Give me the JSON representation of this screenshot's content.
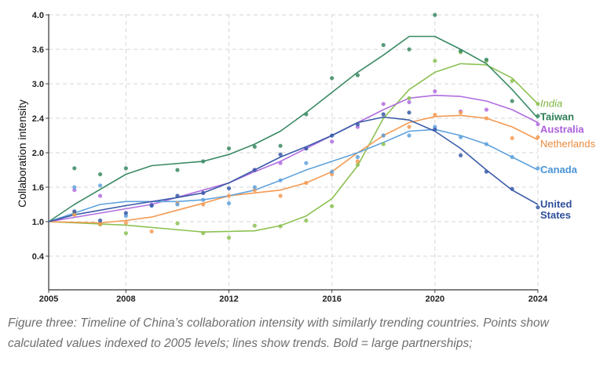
{
  "chart_data": {
    "type": "line",
    "title": "",
    "xlabel": "",
    "ylabel": "Collaboration intensity",
    "xlim": [
      2005,
      2024
    ],
    "ylim": [
      0.15,
      4.0
    ],
    "x_ticks": [
      "2005",
      "2008",
      "2012",
      "2016",
      "2020",
      "2024"
    ],
    "y_ticks": [
      "0.4",
      "1.0",
      "1.6",
      "2.0",
      "2.4",
      "3.0",
      "3.6",
      "4.0"
    ],
    "grid": true,
    "series": [
      {
        "name": "India",
        "bold": false,
        "italic": true,
        "color": "#8cc152",
        "label_color": "#7db33f",
        "trend_x": [
          2005,
          2008,
          2011,
          2013,
          2014,
          2015,
          2016,
          2017,
          2018,
          2019,
          2020,
          2021,
          2022,
          2023,
          2024
        ],
        "trend_y": [
          1.0,
          0.94,
          0.82,
          0.84,
          0.93,
          1.1,
          1.4,
          1.85,
          2.4,
          2.9,
          3.2,
          3.35,
          3.33,
          3.1,
          2.65
        ],
        "points_x": [
          2006,
          2007,
          2008,
          2010,
          2011,
          2012,
          2013,
          2014,
          2015,
          2016,
          2017,
          2018,
          2019,
          2020,
          2021,
          2022,
          2023,
          2024
        ],
        "points_y": [
          1.15,
          0.95,
          0.8,
          0.97,
          0.8,
          0.72,
          0.93,
          0.92,
          1.02,
          1.27,
          1.86,
          2.1,
          2.75,
          3.4,
          3.55,
          3.4,
          3.05,
          2.65
        ]
      },
      {
        "name": "Taiwan",
        "bold": true,
        "italic": false,
        "color": "#3b8a64",
        "label_color": "#2e7d56",
        "trend_x": [
          2005,
          2006,
          2008,
          2009,
          2011,
          2012,
          2013,
          2014,
          2015,
          2016,
          2017,
          2018,
          2019,
          2020,
          2021,
          2022,
          2023,
          2024
        ],
        "trend_y": [
          1.0,
          1.3,
          1.75,
          1.85,
          1.9,
          1.98,
          2.1,
          2.25,
          2.5,
          2.85,
          3.2,
          3.5,
          3.75,
          3.75,
          3.6,
          3.35,
          2.9,
          2.4
        ],
        "points_x": [
          2006,
          2007,
          2008,
          2010,
          2011,
          2012,
          2013,
          2014,
          2015,
          2016,
          2017,
          2018,
          2019,
          2020,
          2021,
          2022,
          2023,
          2024
        ],
        "points_y": [
          1.82,
          1.75,
          1.82,
          1.8,
          1.9,
          2.05,
          2.07,
          2.08,
          2.47,
          3.1,
          3.15,
          3.65,
          3.6,
          4.0,
          3.57,
          3.42,
          2.7,
          2.44
        ]
      },
      {
        "name": "Australia",
        "bold": true,
        "italic": false,
        "color": "#b06ee0",
        "label_color": "#a95fdb",
        "trend_x": [
          2005,
          2007,
          2009,
          2011,
          2012,
          2013,
          2014,
          2015,
          2016,
          2017,
          2018,
          2019,
          2020,
          2021,
          2022,
          2023,
          2024
        ],
        "trend_y": [
          1.0,
          1.15,
          1.3,
          1.55,
          1.65,
          1.78,
          1.9,
          2.05,
          2.2,
          2.35,
          2.55,
          2.75,
          2.8,
          2.78,
          2.7,
          2.55,
          2.35
        ],
        "points_x": [
          2006,
          2007,
          2009,
          2011,
          2013,
          2014,
          2015,
          2016,
          2017,
          2018,
          2019,
          2020,
          2021,
          2022,
          2024
        ],
        "points_y": [
          1.55,
          1.45,
          1.3,
          1.5,
          1.8,
          1.88,
          2.05,
          2.13,
          2.3,
          2.65,
          2.68,
          2.87,
          2.52,
          2.55,
          2.33
        ]
      },
      {
        "name": "Netherlands",
        "bold": false,
        "italic": false,
        "color": "#f39a53",
        "label_color": "#ec8a3c",
        "trend_x": [
          2005,
          2007,
          2008,
          2009,
          2010,
          2011,
          2012,
          2013,
          2014,
          2015,
          2016,
          2017,
          2018,
          2019,
          2020,
          2021,
          2022,
          2023,
          2024
        ],
        "trend_y": [
          1.0,
          0.98,
          1.02,
          1.08,
          1.2,
          1.32,
          1.45,
          1.5,
          1.55,
          1.65,
          1.78,
          2.0,
          2.2,
          2.35,
          2.43,
          2.45,
          2.4,
          2.3,
          2.15
        ],
        "points_x": [
          2006,
          2007,
          2008,
          2009,
          2010,
          2011,
          2012,
          2013,
          2014,
          2015,
          2016,
          2017,
          2018,
          2019,
          2020,
          2021,
          2022,
          2023,
          2024
        ],
        "points_y": [
          1.12,
          0.96,
          0.98,
          0.83,
          1.32,
          1.3,
          1.45,
          1.55,
          1.45,
          1.65,
          1.75,
          1.9,
          2.2,
          2.3,
          2.46,
          2.5,
          2.4,
          2.17,
          2.18
        ]
      },
      {
        "name": "Canada",
        "bold": true,
        "italic": false,
        "color": "#5fa2dd",
        "label_color": "#4a93d6",
        "trend_x": [
          2005,
          2007,
          2008,
          2010,
          2011,
          2012,
          2013,
          2014,
          2015,
          2016,
          2017,
          2018,
          2019,
          2020,
          2021,
          2022,
          2023,
          2024
        ],
        "trend_y": [
          1.0,
          1.3,
          1.35,
          1.35,
          1.38,
          1.45,
          1.55,
          1.68,
          1.8,
          1.9,
          2.0,
          2.12,
          2.25,
          2.27,
          2.2,
          2.1,
          1.95,
          1.8
        ],
        "points_x": [
          2006,
          2007,
          2008,
          2009,
          2010,
          2011,
          2012,
          2013,
          2014,
          2015,
          2016,
          2017,
          2018,
          2019,
          2020,
          2021,
          2022,
          2023,
          2024
        ],
        "points_y": [
          1.6,
          1.62,
          1.1,
          1.28,
          1.3,
          1.38,
          1.32,
          1.6,
          1.68,
          1.88,
          1.78,
          1.95,
          2.2,
          2.2,
          2.3,
          2.18,
          2.1,
          1.95,
          1.82
        ]
      },
      {
        "name": "United States",
        "label_lines": [
          "United",
          "States"
        ],
        "bold": true,
        "italic": false,
        "color": "#3a5ba8",
        "label_color": "#2f4f9a",
        "trend_x": [
          2005,
          2006,
          2008,
          2010,
          2011,
          2012,
          2013,
          2014,
          2015,
          2016,
          2017,
          2018,
          2019,
          2020,
          2021,
          2022,
          2023,
          2024
        ],
        "trend_y": [
          1.0,
          1.12,
          1.28,
          1.42,
          1.5,
          1.65,
          1.8,
          1.95,
          2.07,
          2.2,
          2.35,
          2.42,
          2.38,
          2.25,
          2.05,
          1.8,
          1.55,
          1.3
        ],
        "points_x": [
          2006,
          2007,
          2008,
          2009,
          2010,
          2011,
          2012,
          2013,
          2014,
          2015,
          2016,
          2017,
          2018,
          2019,
          2020,
          2021,
          2022,
          2023,
          2024
        ],
        "points_y": [
          1.18,
          1.02,
          1.15,
          1.28,
          1.45,
          1.5,
          1.58,
          1.8,
          1.98,
          2.05,
          2.2,
          2.33,
          2.47,
          2.5,
          2.27,
          1.97,
          1.78,
          1.57,
          1.25
        ]
      }
    ]
  },
  "caption": "Figure three: Timeline of China’s collaboration intensity with similarly trending countries. Points show calculated values indexed to 2005 levels; lines show trends. Bold = large partnerships;"
}
